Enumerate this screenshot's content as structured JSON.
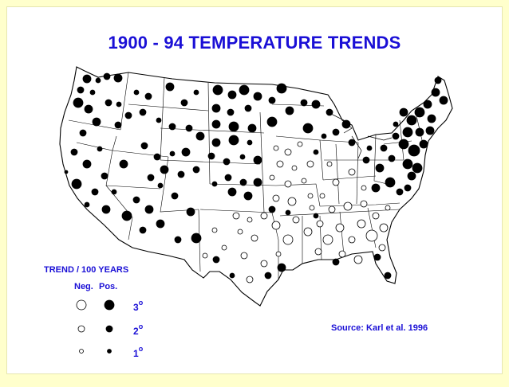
{
  "title": "1900 - 94 TEMPERATURE TRENDS",
  "source": "Source: Karl et al.  1996",
  "legend": {
    "title": "TREND / 100 YEARS",
    "neg_label": "Neg.",
    "pos_label": "Pos.",
    "degree_symbol": "o",
    "rows": [
      {
        "value": "3"
      },
      {
        "value": "2"
      },
      {
        "value": "1"
      }
    ]
  },
  "colors": {
    "background": "#ffffcc",
    "title": "#1a0fd6",
    "positive_marker": "#000000",
    "negative_marker": "#ffffff"
  }
}
